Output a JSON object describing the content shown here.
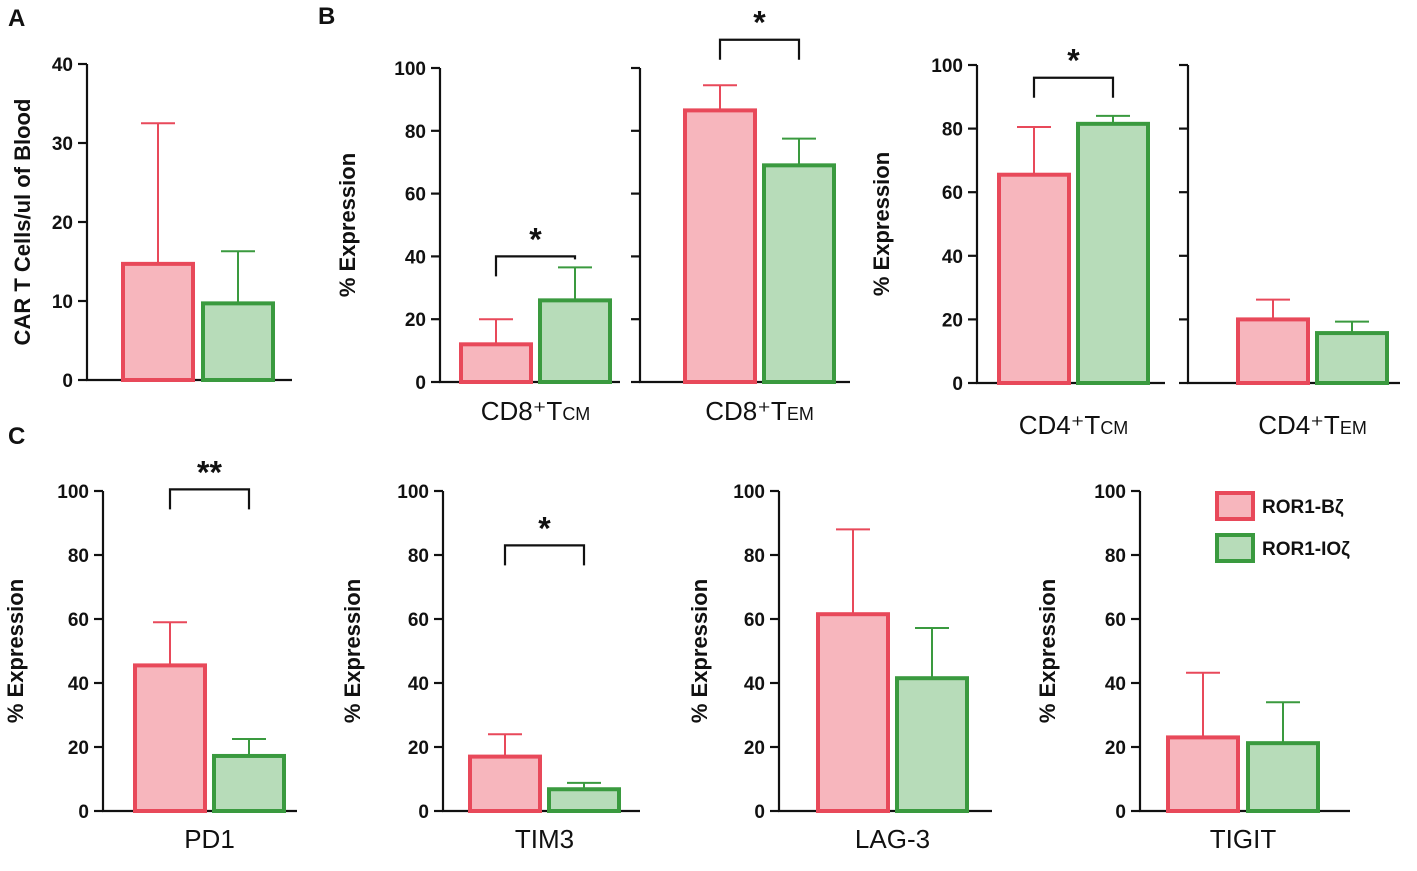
{
  "colors": {
    "red_fill": "#f7b6bd",
    "red_stroke": "#e8495a",
    "green_fill": "#b7dcb9",
    "green_stroke": "#3a9a3f",
    "axis": "#111111"
  },
  "panel_labels": [
    "A",
    "B",
    "C"
  ],
  "legend": [
    {
      "label": "ROR1-Bζ",
      "color_key": "red"
    },
    {
      "label": "ROR1-IOζ",
      "color_key": "green"
    }
  ],
  "chart_data": [
    {
      "id": "A",
      "type": "bar",
      "ylabel": "CAR T Cells/ul of Blood",
      "ylim": [
        0,
        40
      ],
      "yticks": [
        0,
        10,
        20,
        30,
        40
      ],
      "groups": [
        {
          "category": "",
          "category_sub": "",
          "values": [
            14.7,
            9.7
          ],
          "errors": [
            32.5,
            16.3
          ]
        }
      ],
      "significance": []
    },
    {
      "id": "B1",
      "type": "bar",
      "ylabel": "% Expression",
      "ylim": [
        0,
        100
      ],
      "yticks": [
        0,
        20,
        40,
        60,
        80,
        100
      ],
      "groups": [
        {
          "category": "CD8⁺T",
          "category_sub": "CM",
          "values": [
            12,
            26
          ],
          "errors": [
            20,
            36.5
          ]
        },
        {
          "category": "CD8⁺T",
          "category_sub": "EM",
          "values": [
            86.5,
            69
          ],
          "errors": [
            94.5,
            77.5
          ]
        }
      ],
      "significance": [
        {
          "group": 0,
          "label": "*",
          "y": 40
        },
        {
          "group": 1,
          "label": "*",
          "y": 109
        }
      ]
    },
    {
      "id": "B2",
      "type": "bar",
      "ylabel": "% Expression",
      "ylim": [
        0,
        100
      ],
      "yticks": [
        0,
        20,
        40,
        60,
        80,
        100
      ],
      "groups": [
        {
          "category": "CD4⁺T",
          "category_sub": "CM",
          "values": [
            65.5,
            81.5
          ],
          "errors": [
            80.5,
            84
          ]
        },
        {
          "category": "CD4⁺T",
          "category_sub": "EM",
          "values": [
            20,
            15.7
          ],
          "errors": [
            26.2,
            19.3
          ]
        }
      ],
      "significance": [
        {
          "group": 0,
          "label": "*",
          "y": 96
        }
      ]
    },
    {
      "id": "C1",
      "type": "bar",
      "ylabel": "% Expression",
      "ylim": [
        0,
        100
      ],
      "yticks": [
        0,
        20,
        40,
        60,
        80,
        100
      ],
      "groups": [
        {
          "category": "PD1",
          "category_sub": "",
          "values": [
            45.5,
            17.2
          ],
          "errors": [
            59,
            22.5
          ]
        }
      ],
      "significance": [
        {
          "group": 0,
          "label": "**",
          "y": 100.5
        }
      ]
    },
    {
      "id": "C2",
      "type": "bar",
      "ylabel": "% Expression",
      "ylim": [
        0,
        100
      ],
      "yticks": [
        0,
        20,
        40,
        60,
        80,
        100
      ],
      "groups": [
        {
          "category": "TIM3",
          "category_sub": "",
          "values": [
            17,
            6.8
          ],
          "errors": [
            24,
            8.8
          ]
        }
      ],
      "significance": [
        {
          "group": 0,
          "label": "*",
          "y": 83
        }
      ]
    },
    {
      "id": "C3",
      "type": "bar",
      "ylabel": "% Expression",
      "ylim": [
        0,
        100
      ],
      "yticks": [
        0,
        20,
        40,
        60,
        80,
        100
      ],
      "groups": [
        {
          "category": "LAG-3",
          "category_sub": "",
          "values": [
            61.5,
            41.5
          ],
          "errors": [
            88,
            57.2
          ]
        }
      ],
      "significance": []
    },
    {
      "id": "C4",
      "type": "bar",
      "ylabel": "% Expression",
      "ylim": [
        0,
        100
      ],
      "yticks": [
        0,
        20,
        40,
        60,
        80,
        100
      ],
      "groups": [
        {
          "category": "TIGIT",
          "category_sub": "",
          "values": [
            23,
            21.2
          ],
          "errors": [
            43.2,
            34
          ]
        }
      ],
      "significance": []
    }
  ]
}
